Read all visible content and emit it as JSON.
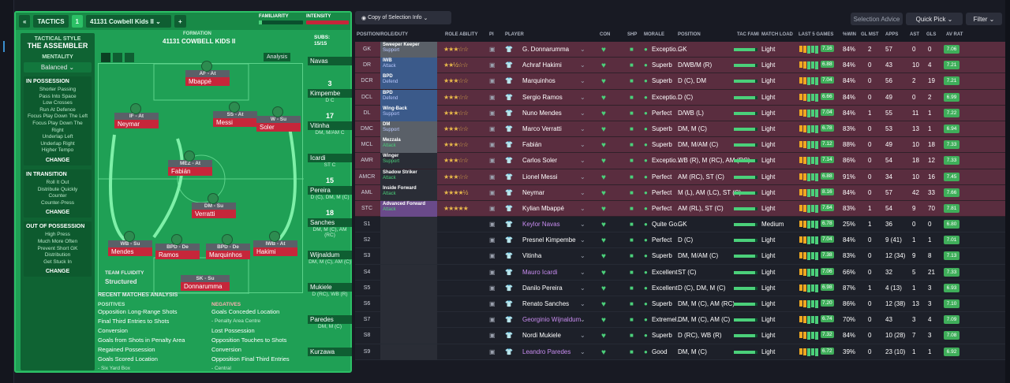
{
  "top": {
    "btn_back": "«",
    "tactics_label": "TACTICS",
    "slot": "1",
    "tactic_name": "41131 Cowbell Kids II",
    "add": "+",
    "fam_label": "FAMILIARITY",
    "int_label": "INTENSITY"
  },
  "left": {
    "style_label": "TACTICAL STYLE",
    "style": "THE ASSEMBLER",
    "mentality_label": "MENTALITY",
    "mentality": "Balanced",
    "in_possession": {
      "title": "IN POSSESSION",
      "lines": [
        "Shorter Passing",
        "Pass Into Space",
        "Low Crosses",
        "Run At Defence",
        "Focus Play Down The Left",
        "Focus Play Down The Right",
        "Underlap Left",
        "Underlap Right",
        "Higher Tempo"
      ],
      "change": "CHANGE"
    },
    "in_transition": {
      "title": "IN TRANSITION",
      "lines": [
        "Roll It Out",
        "Distribute Quickly",
        "Counter",
        "Counter-Press"
      ],
      "change": "CHANGE"
    },
    "out_possession": {
      "title": "OUT OF POSSESSION",
      "lines": [
        "High Press",
        "Much More Often",
        "Prevent Short GK",
        "Distribution",
        "Get Stuck In"
      ],
      "change": "CHANGE"
    }
  },
  "formation": {
    "label": "FORMATION",
    "name": "41131 COWBELL KIDS II",
    "subs_label": "SUBS:",
    "subs_count": "15/15",
    "analysis_btn": "Analysis",
    "fluidity_label": "TEAM FLUIDITY",
    "fluidity": "Structured"
  },
  "pitch_players": [
    {
      "role": "AF - At",
      "name": "Mbappé"
    },
    {
      "role": "IF - At",
      "name": "Neymar"
    },
    {
      "role": "SS - At",
      "name": "Messi"
    },
    {
      "role": "W - Su",
      "name": "Soler"
    },
    {
      "role": "MEZ - At",
      "name": "Fabián"
    },
    {
      "role": "DM - Su",
      "name": "Verratti"
    },
    {
      "role": "WB - Su",
      "name": "Mendes"
    },
    {
      "role": "BPD - De",
      "name": "Ramos"
    },
    {
      "role": "BPD - De",
      "name": "Marquinhos"
    },
    {
      "role": "IWB - At",
      "name": "Hakimi"
    },
    {
      "role": "SK - Su",
      "name": "Donnarumma"
    }
  ],
  "subs": [
    {
      "num": "",
      "name": "Navas",
      "pos": ""
    },
    {
      "num": "3",
      "name": "Kimpembe",
      "pos": "D C"
    },
    {
      "num": "17",
      "name": "Vitinha",
      "pos": "DM, M/AM C"
    },
    {
      "num": "",
      "name": "Icardi",
      "pos": "ST C"
    },
    {
      "num": "15",
      "name": "Pereira",
      "pos": "D (C), DM, M (C)"
    },
    {
      "num": "18",
      "name": "Sanches",
      "pos": "DM, M (C), AM (RC)"
    },
    {
      "num": "",
      "name": "Wijnaldum",
      "pos": "DM, M (C), AM (C)"
    },
    {
      "num": "",
      "name": "Mukiele",
      "pos": "D (RC), WB (R)"
    },
    {
      "num": "",
      "name": "Paredes",
      "pos": "DM, M (C)"
    },
    {
      "num": "",
      "name": "Kurzawa",
      "pos": ""
    }
  ],
  "analysis": {
    "title": "RECENT MATCHES ANALYSIS",
    "pos_label": "POSITIVES",
    "positives": [
      "Opposition Long-Range Shots",
      "Final Third Entries to Shots Conversion",
      "Goals from Shots in Penalty Area",
      "Regained Possession",
      "Goals Scored Location",
      "- Six Yard Box"
    ],
    "neg_label": "NEGATIVES",
    "negatives": [
      "Goals Conceded Location",
      "- Penalty Area Centre",
      "Lost Possession",
      "Opposition Touches to Shots Conversion",
      "Opposition Final Third Entries",
      "- Central"
    ]
  },
  "toolbar": {
    "filter_label": "Copy of Selection Info",
    "selection_advice": "Selection Advice",
    "quick_pick": "Quick Pick",
    "filter": "Filter"
  },
  "columns": {
    "pos": "POSITION/ROLE/DUTY",
    "ra": "ROLE ABILITY",
    "pi": "PI",
    "player": "PLAYER",
    "con": "CON",
    "shp": "SHP",
    "morale": "MORALE",
    "position": "POSITION",
    "tf": "TAC FAMI",
    "ml": "MATCH LOAD",
    "l5": "LAST 5 GAMES",
    "win": "%WIN",
    "glmst": "GL MST",
    "apps": "APPS",
    "ast": "AST",
    "gls": "GLS",
    "av": "AV RAT"
  },
  "rows": [
    {
      "slot": "GK",
      "role": "Sweeper Keeper",
      "duty": "Support",
      "stars": "★★★☆☆",
      "player": "G. Donnarumma",
      "morale": "Exceptio...",
      "pos": "GK",
      "load": "Light",
      "l5": "7.16",
      "win": "84%",
      "gm": "2",
      "apps": "57",
      "ast": "0",
      "gls": "0",
      "av": "7.06"
    },
    {
      "slot": "DR",
      "role": "IWB",
      "duty": "Attack",
      "stars": "★★½☆☆",
      "player": "Achraf Hakimi",
      "morale": "Superb",
      "pos": "D/WB/M (R)",
      "load": "Light",
      "l5": "6.88",
      "win": "84%",
      "gm": "0",
      "apps": "43",
      "ast": "10",
      "gls": "4",
      "av": "7.21"
    },
    {
      "slot": "DCR",
      "role": "BPD",
      "duty": "Defend",
      "stars": "★★★☆☆",
      "player": "Marquinhos",
      "morale": "Superb",
      "pos": "D (C), DM",
      "load": "Light",
      "l5": "7.04",
      "win": "84%",
      "gm": "0",
      "apps": "56",
      "ast": "2",
      "gls": "19",
      "av": "7.21"
    },
    {
      "slot": "DCL",
      "role": "BPD",
      "duty": "Defend",
      "stars": "★★★☆☆",
      "player": "Sergio Ramos",
      "morale": "Exceptio...",
      "pos": "D (C)",
      "load": "Light",
      "l5": "6.66",
      "win": "84%",
      "gm": "0",
      "apps": "49",
      "ast": "0",
      "gls": "2",
      "av": "6.99"
    },
    {
      "slot": "DL",
      "role": "Wing-Back",
      "duty": "Support",
      "stars": "★★★☆☆",
      "player": "Nuno Mendes",
      "morale": "Perfect",
      "pos": "D/WB (L)",
      "load": "Light",
      "l5": "7.04",
      "win": "84%",
      "gm": "1",
      "apps": "55",
      "ast": "11",
      "gls": "1",
      "av": "7.22"
    },
    {
      "slot": "DMC",
      "role": "DM",
      "duty": "Support",
      "stars": "★★★☆☆",
      "player": "Marco Verratti",
      "morale": "Superb",
      "pos": "DM, M (C)",
      "load": "Light",
      "l5": "6.78",
      "win": "83%",
      "gm": "0",
      "apps": "53",
      "ast": "13",
      "gls": "1",
      "av": "6.94"
    },
    {
      "slot": "MCL",
      "role": "Mezzala",
      "duty": "Attack",
      "stars": "★★★☆☆",
      "player": "Fabián",
      "morale": "Superb",
      "pos": "DM, M/AM (C)",
      "load": "Light",
      "l5": "7.12",
      "win": "88%",
      "gm": "0",
      "apps": "49",
      "ast": "10",
      "gls": "18",
      "av": "7.33"
    },
    {
      "slot": "AMR",
      "role": "Winger",
      "duty": "Support",
      "stars": "★★★☆☆",
      "player": "Carlos Soler",
      "morale": "Exceptio...",
      "pos": "WB (R), M (RC), AM (RC)",
      "load": "Light",
      "l5": "7.14",
      "win": "86%",
      "gm": "0",
      "apps": "54",
      "ast": "18",
      "gls": "12",
      "av": "7.33"
    },
    {
      "slot": "AMCR",
      "role": "Shadow Striker",
      "duty": "Attack",
      "stars": "★★★☆☆",
      "player": "Lionel Messi",
      "morale": "Perfect",
      "pos": "AM (RC), ST (C)",
      "load": "Light",
      "l5": "6.88",
      "win": "91%",
      "gm": "0",
      "apps": "34",
      "ast": "10",
      "gls": "16",
      "av": "7.45"
    },
    {
      "slot": "AML",
      "role": "Inside Forward",
      "duty": "Attack",
      "stars": "★★★★½",
      "player": "Neymar",
      "morale": "Perfect",
      "pos": "M (L), AM (LC), ST (C)",
      "load": "Light",
      "l5": "8.16",
      "win": "84%",
      "gm": "0",
      "apps": "57",
      "ast": "42",
      "gls": "33",
      "av": "7.66"
    },
    {
      "slot": "STC",
      "role": "Advanced Forward",
      "duty": "Attack",
      "stars": "★★★★★",
      "player": "Kylian Mbappé",
      "morale": "Perfect",
      "pos": "AM (RL), ST (C)",
      "load": "Light",
      "l5": "7.64",
      "win": "83%",
      "gm": "1",
      "apps": "54",
      "ast": "9",
      "gls": "70",
      "av": "7.81"
    },
    {
      "slot": "S1",
      "player": "Keylor Navas",
      "morale": "Quite Go...",
      "pos": "GK",
      "load": "Medium",
      "l5": "6.78",
      "win": "25%",
      "gm": "1",
      "apps": "36",
      "ast": "0",
      "gls": "0",
      "av": "6.80"
    },
    {
      "slot": "S2",
      "player": "Presnel Kimpembe",
      "morale": "Perfect",
      "pos": "D (C)",
      "load": "Light",
      "l5": "7.04",
      "win": "84%",
      "gm": "0",
      "apps": "9 (41)",
      "ast": "1",
      "gls": "1",
      "av": "7.01"
    },
    {
      "slot": "S3",
      "player": "Vitinha",
      "morale": "Superb",
      "pos": "DM, M/AM (C)",
      "load": "Light",
      "l5": "7.38",
      "win": "83%",
      "gm": "0",
      "apps": "12 (34)",
      "ast": "9",
      "gls": "8",
      "av": "7.13"
    },
    {
      "slot": "S4",
      "player": "Mauro Icardi",
      "morale": "Excellent",
      "pos": "ST (C)",
      "load": "Light",
      "l5": "7.06",
      "win": "66%",
      "gm": "0",
      "apps": "32",
      "ast": "5",
      "gls": "21",
      "av": "7.33"
    },
    {
      "slot": "S5",
      "player": "Danilo Pereira",
      "morale": "Excellent",
      "pos": "D (C), DM, M (C)",
      "load": "Light",
      "l5": "6.98",
      "win": "87%",
      "gm": "1",
      "apps": "4 (13)",
      "ast": "1",
      "gls": "3",
      "av": "6.93"
    },
    {
      "slot": "S6",
      "player": "Renato Sanches",
      "morale": "Superb",
      "pos": "DM, M (C), AM (RC)",
      "load": "Light",
      "l5": "7.20",
      "win": "86%",
      "gm": "0",
      "apps": "12 (38)",
      "ast": "13",
      "gls": "3",
      "av": "7.10"
    },
    {
      "slot": "S7",
      "player": "Georginio Wijnaldum",
      "morale": "Extremel...",
      "pos": "DM, M (C), AM (C)",
      "load": "Light",
      "l5": "6.74",
      "win": "70%",
      "gm": "0",
      "apps": "43",
      "ast": "3",
      "gls": "4",
      "av": "7.09"
    },
    {
      "slot": "S8",
      "player": "Nordi Mukiele",
      "morale": "Superb",
      "pos": "D (RC), WB (R)",
      "load": "Light",
      "l5": "7.32",
      "win": "84%",
      "gm": "0",
      "apps": "10 (28)",
      "ast": "7",
      "gls": "3",
      "av": "7.08"
    },
    {
      "slot": "S9",
      "player": "Leandro Paredes",
      "morale": "Good",
      "pos": "DM, M (C)",
      "load": "Light",
      "l5": "6.72",
      "win": "39%",
      "gm": "0",
      "apps": "23 (10)",
      "ast": "1",
      "gls": "1",
      "av": "6.92"
    }
  ]
}
